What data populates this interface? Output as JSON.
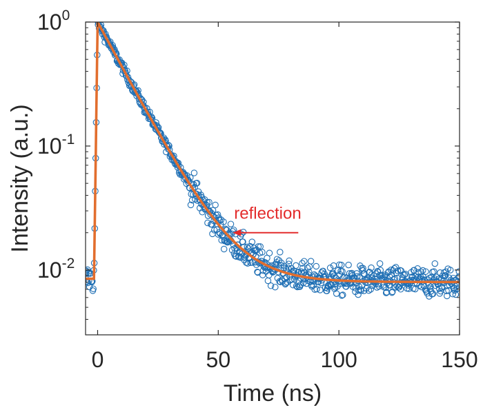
{
  "chart_data": {
    "type": "scatter",
    "xlabel": "Time (ns)",
    "ylabel": "Intensity (a.u.)",
    "xlim": [
      -5,
      150
    ],
    "ylim": [
      0.003,
      1.0
    ],
    "yscale": "log",
    "grid": false,
    "legend": "none",
    "xticks": [
      {
        "value": 0,
        "label": "0"
      },
      {
        "value": 50,
        "label": "50"
      },
      {
        "value": 100,
        "label": "100"
      },
      {
        "value": 150,
        "label": "150"
      }
    ],
    "yticks": [
      {
        "value": 1,
        "base": "10",
        "exp": "0"
      },
      {
        "value": 0.1,
        "base": "10",
        "exp": "-1"
      },
      {
        "value": 0.01,
        "base": "10",
        "exp": "-2"
      }
    ],
    "fit": {
      "model": "exp_decay_with_background",
      "t_peak": 0,
      "amplitude": 0.992,
      "tau": 12,
      "background": 0.008,
      "rise_start": -1.5,
      "color": "#E26E2E"
    },
    "data_series": {
      "marker": "open-circle",
      "color": "#1F6FB4",
      "pre_pulse_level": 0.0085,
      "x_start": -5,
      "x_end": 150,
      "x_step": 0.2,
      "noise_decades": 0.06
    },
    "reflection_bump": {
      "x": 51.5,
      "y": 0.02
    },
    "annotations": [
      {
        "text": "reflection",
        "x": 56,
        "y": 0.02,
        "color": "#E32B2B"
      }
    ],
    "colors": {
      "data": "#1F6FB4",
      "fit": "#E26E2E",
      "annotation": "#E32B2B",
      "axis": "#262626"
    }
  }
}
